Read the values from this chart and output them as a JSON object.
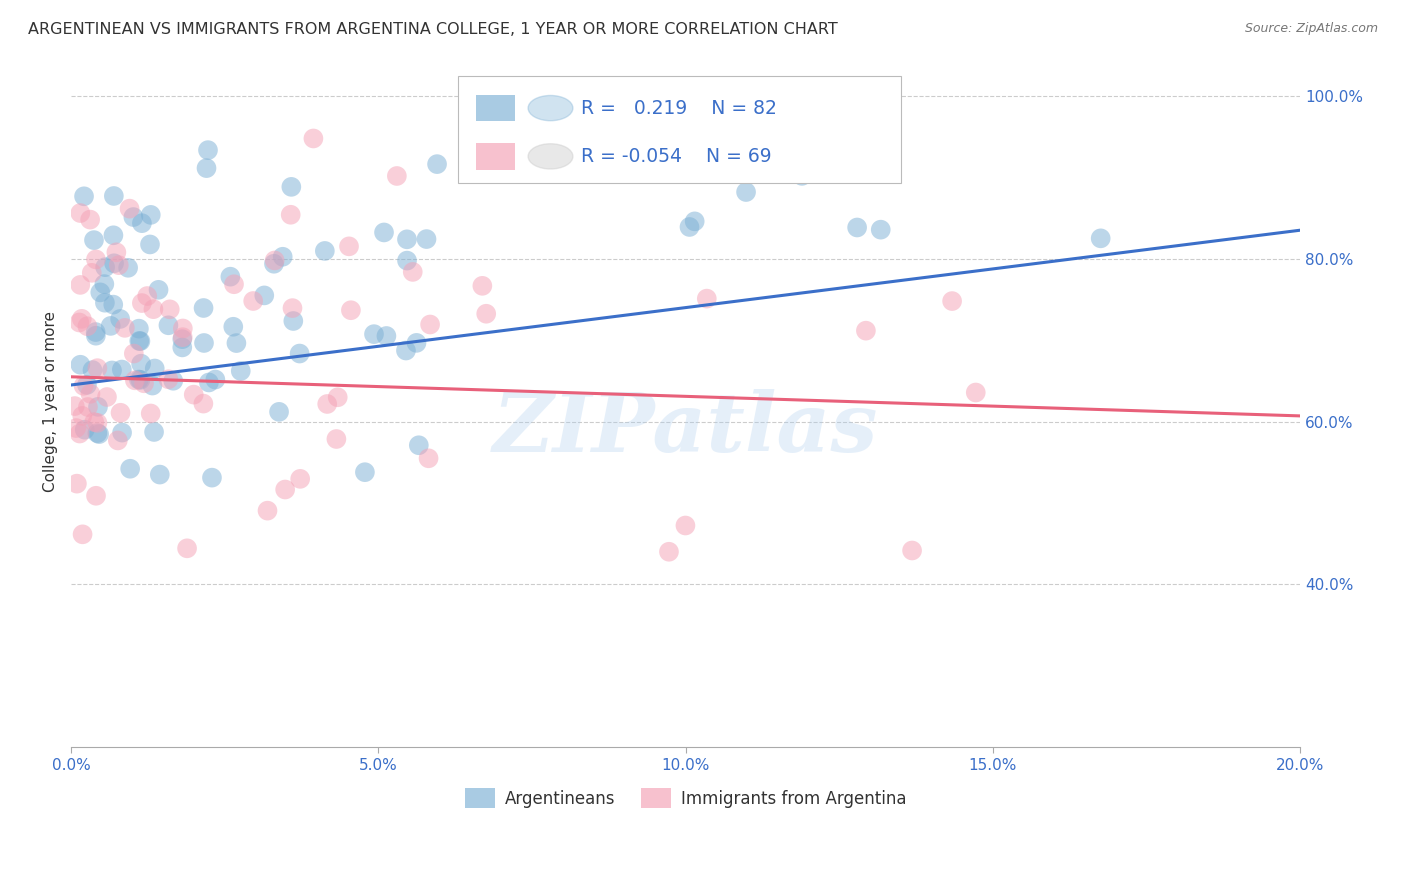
{
  "title": "ARGENTINEAN VS IMMIGRANTS FROM ARGENTINA COLLEGE, 1 YEAR OR MORE CORRELATION CHART",
  "source": "Source: ZipAtlas.com",
  "ylabel": "College, 1 year or more",
  "xmin": 0.0,
  "xmax": 0.2,
  "ymin": 0.2,
  "ymax": 1.05,
  "ytick_vals": [
    0.4,
    0.6,
    0.8,
    1.0
  ],
  "ytick_labels": [
    "40.0%",
    "60.0%",
    "80.0%",
    "100.0%"
  ],
  "xtick_vals": [
    0.0,
    0.05,
    0.1,
    0.15,
    0.2
  ],
  "xtick_labels": [
    "0.0%",
    "5.0%",
    "10.0%",
    "15.0%",
    "20.0%"
  ],
  "legend_labels": [
    "Argentineans",
    "Immigrants from Argentina"
  ],
  "blue_r": "0.219",
  "blue_n": "82",
  "pink_r": "-0.054",
  "pink_n": "69",
  "blue_color": "#7BAFD4",
  "pink_color": "#F4A0B5",
  "blue_line_color": "#3B6FC9",
  "pink_line_color": "#E8607A",
  "blue_trend_x0": 0.0,
  "blue_trend_y0": 0.645,
  "blue_trend_x1": 0.2,
  "blue_trend_y1": 0.835,
  "pink_trend_x0": 0.0,
  "pink_trend_y0": 0.655,
  "pink_trend_x1": 0.2,
  "pink_trend_y1": 0.607,
  "watermark": "ZIPatlas",
  "title_fontsize": 11.5,
  "axis_label_fontsize": 11,
  "tick_fontsize": 11,
  "legend_text_color": "#3B6FC9",
  "grid_color": "#CCCCCC"
}
